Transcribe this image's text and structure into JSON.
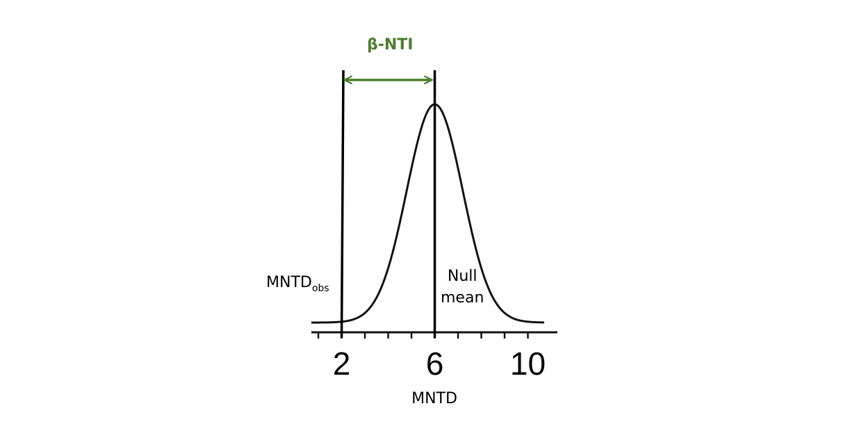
{
  "annotation": {
    "text": "β-NTI",
    "color": "#4e7d30"
  },
  "observed_label": {
    "main": "MNTD",
    "subscript": "obs"
  },
  "null_mean_label": {
    "line1": "Null",
    "line2": "mean"
  },
  "chart_data": {
    "type": "line",
    "curve": "normal distribution",
    "xlabel": "MNTD",
    "ylabel": "",
    "xlim": [
      0.7,
      10.7
    ],
    "x_ticks": [
      1,
      2,
      3,
      4,
      5,
      6,
      7,
      8,
      9,
      10
    ],
    "x_tick_labels": [
      {
        "value": 2,
        "text": "2"
      },
      {
        "value": 6,
        "text": "6"
      },
      {
        "value": 10,
        "text": "10"
      }
    ],
    "distribution": {
      "mean": 6,
      "sd": 1.2
    },
    "vertical_lines": [
      {
        "x": 2,
        "label": "MNTDobs"
      },
      {
        "x": 6,
        "label": "Null mean"
      }
    ],
    "arrow": {
      "from": 2,
      "to": 6,
      "label": "β-NTI",
      "color": "#4e7d30"
    }
  }
}
